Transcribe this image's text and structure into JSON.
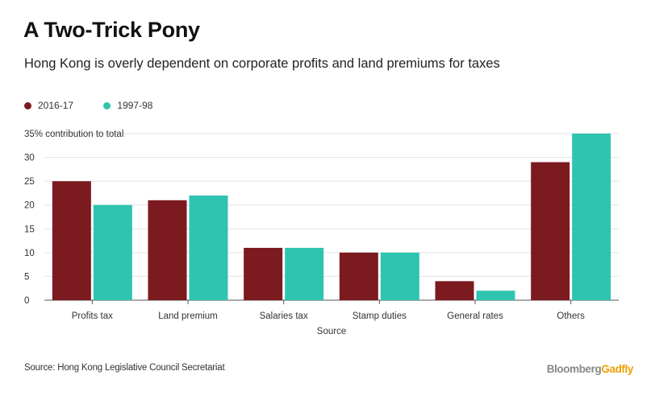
{
  "header": {
    "title": "A Two-Trick Pony",
    "subtitle": "Hong Kong is overly dependent on corporate profits and land premiums for taxes"
  },
  "footer": {
    "source": "Source: Hong Kong Legislative Council Secretariat",
    "brand_part1": "Bloomberg",
    "brand_part2": "Gadfly"
  },
  "chart_data": {
    "type": "bar",
    "title": "A Two-Trick Pony",
    "xlabel": "Source",
    "ylabel": "35% contribution to total",
    "ylim": [
      0,
      35
    ],
    "yticks": [
      0,
      5,
      10,
      15,
      20,
      25,
      30
    ],
    "categories": [
      "Profits tax",
      "Land premium",
      "Salaries tax",
      "Stamp duties",
      "General rates",
      "Others"
    ],
    "series": [
      {
        "name": "2016-17",
        "color": "#7b1a1f",
        "values": [
          25,
          21,
          11,
          10,
          4,
          29
        ]
      },
      {
        "name": "1997-98",
        "color": "#2ec4b0",
        "values": [
          20,
          22,
          11,
          10,
          2,
          35
        ]
      }
    ],
    "grid": true,
    "legend": "top-left"
  }
}
